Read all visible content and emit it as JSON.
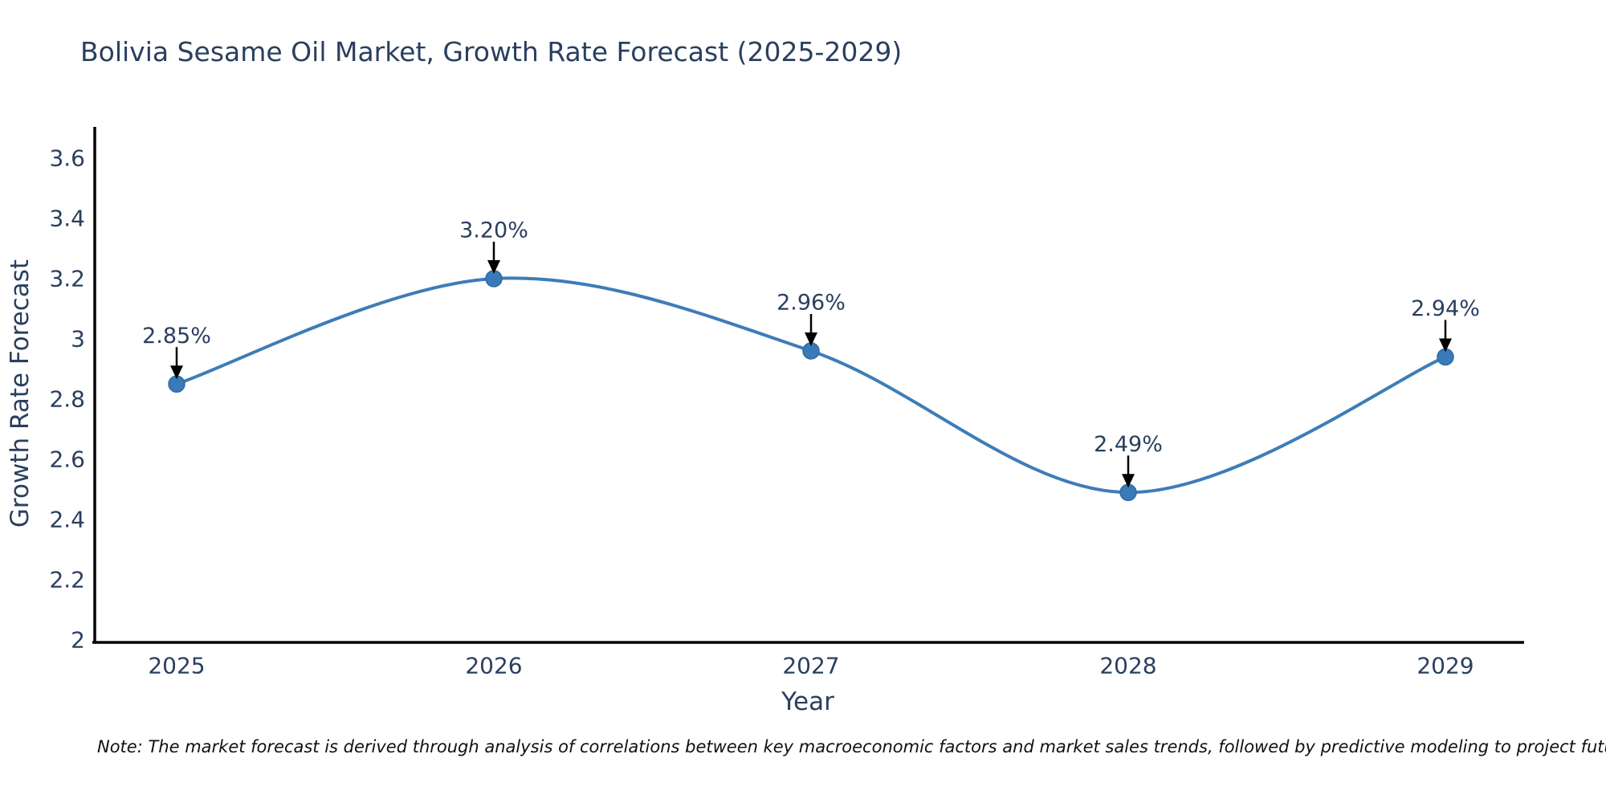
{
  "chart_data": {
    "type": "line",
    "title": "Bolivia Sesame Oil Market, Growth Rate Forecast (2025-2029)",
    "xlabel": "Year",
    "ylabel": "Growth Rate Forecast",
    "categories": [
      "2025",
      "2026",
      "2027",
      "2028",
      "2029"
    ],
    "values": [
      2.85,
      3.2,
      2.96,
      2.49,
      2.94
    ],
    "point_labels": [
      "2.85%",
      "3.20%",
      "2.96%",
      "2.49%",
      "2.94%"
    ],
    "ytick_values": [
      2,
      2.2,
      2.4,
      2.6,
      2.8,
      3,
      3.2,
      3.4,
      3.6
    ],
    "ytick_labels": [
      "2",
      "2.2",
      "2.4",
      "2.6",
      "2.8",
      "3",
      "3.2",
      "3.4",
      "3.6"
    ],
    "ylim": [
      2.0,
      3.7
    ],
    "curve": "spline",
    "grid": false,
    "legend": false,
    "line_color": "#3d7db8",
    "marker_color": "#3a7ab8",
    "marker_edge_color": "#2f6ba3",
    "annotation_arrow_color": "#000000",
    "annotation_text_color": "#2a3f5f",
    "axis_line_color": "#000000",
    "tick_text_color": "#2a3f5f"
  },
  "note": "Note: The market forecast is derived through analysis of correlations between key macroeconomic factors and market sales trends, followed by predictive modeling to project future sales"
}
